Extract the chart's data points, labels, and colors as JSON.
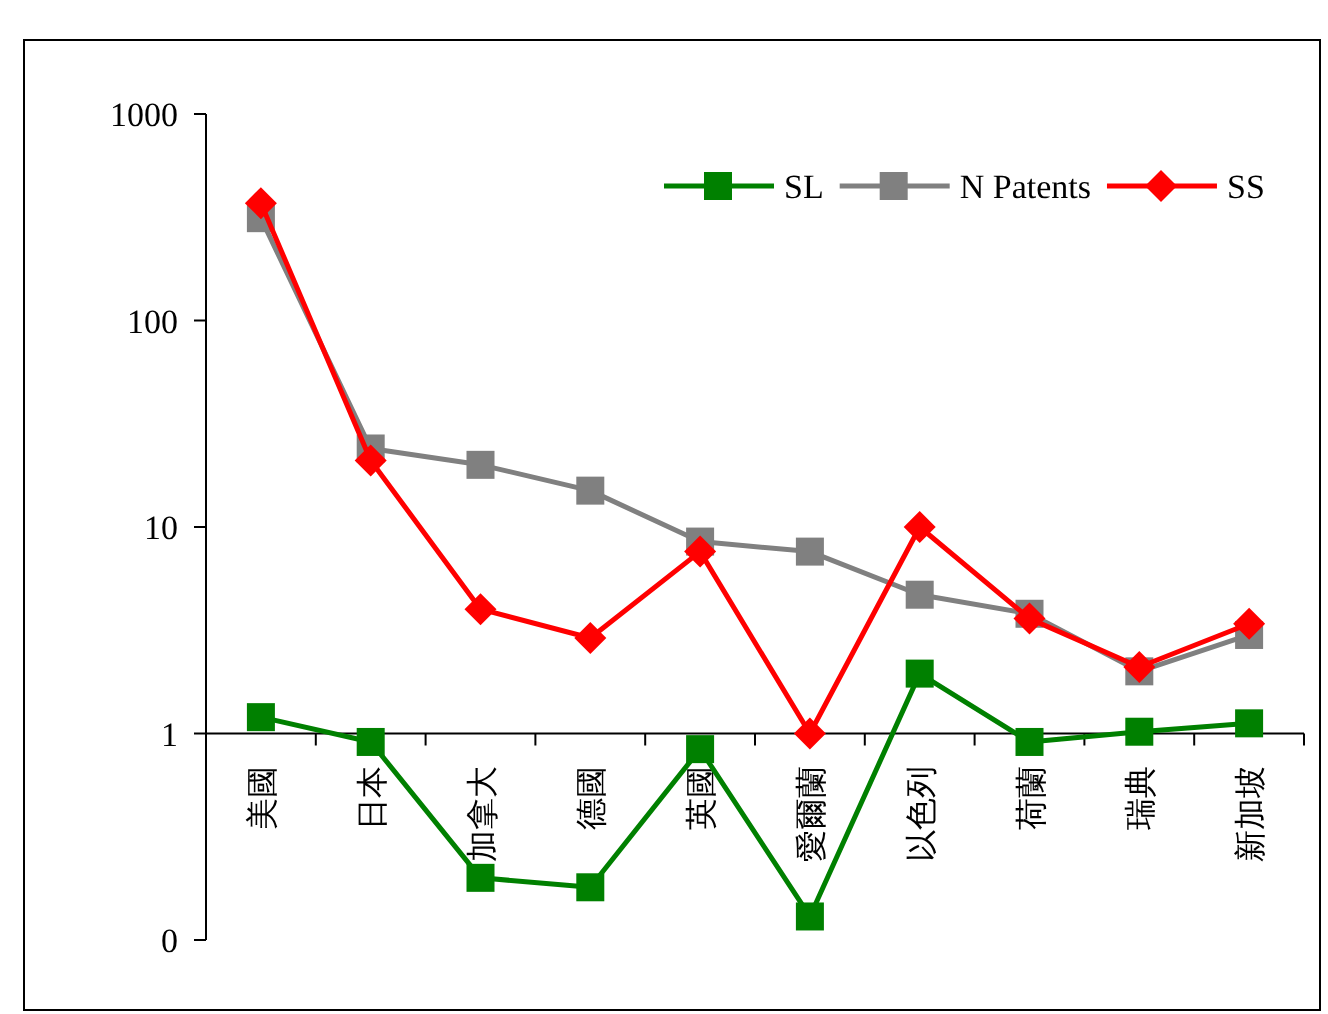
{
  "chart_data": {
    "type": "line",
    "categories": [
      "美國",
      "日本",
      "加拿大",
      "德國",
      "英國",
      "愛爾蘭",
      "以色列",
      "荷蘭",
      "瑞典",
      "新加坡"
    ],
    "log": true,
    "ylim": [
      0.1,
      1000
    ],
    "yticks": [
      {
        "value": 0.1,
        "label": "0"
      },
      1,
      10,
      100,
      1000
    ],
    "grid": false,
    "legend": "top right",
    "series": [
      {
        "name": "SL",
        "color": "#008000",
        "marker": "square",
        "values": [
          1.2,
          0.91,
          0.2,
          0.18,
          0.84,
          0.13,
          1.95,
          0.91,
          1.02,
          1.12
        ]
      },
      {
        "name": "N Patents",
        "color": "#808080",
        "marker": "square",
        "values": [
          313,
          24,
          20,
          15,
          8.5,
          7.6,
          4.7,
          3.8,
          2,
          3
        ]
      },
      {
        "name": "SS",
        "color": "#ff0000",
        "marker": "diamond",
        "values": [
          370,
          21,
          4,
          2.9,
          7.6,
          1,
          10,
          3.6,
          2.1,
          3.4
        ]
      }
    ]
  }
}
